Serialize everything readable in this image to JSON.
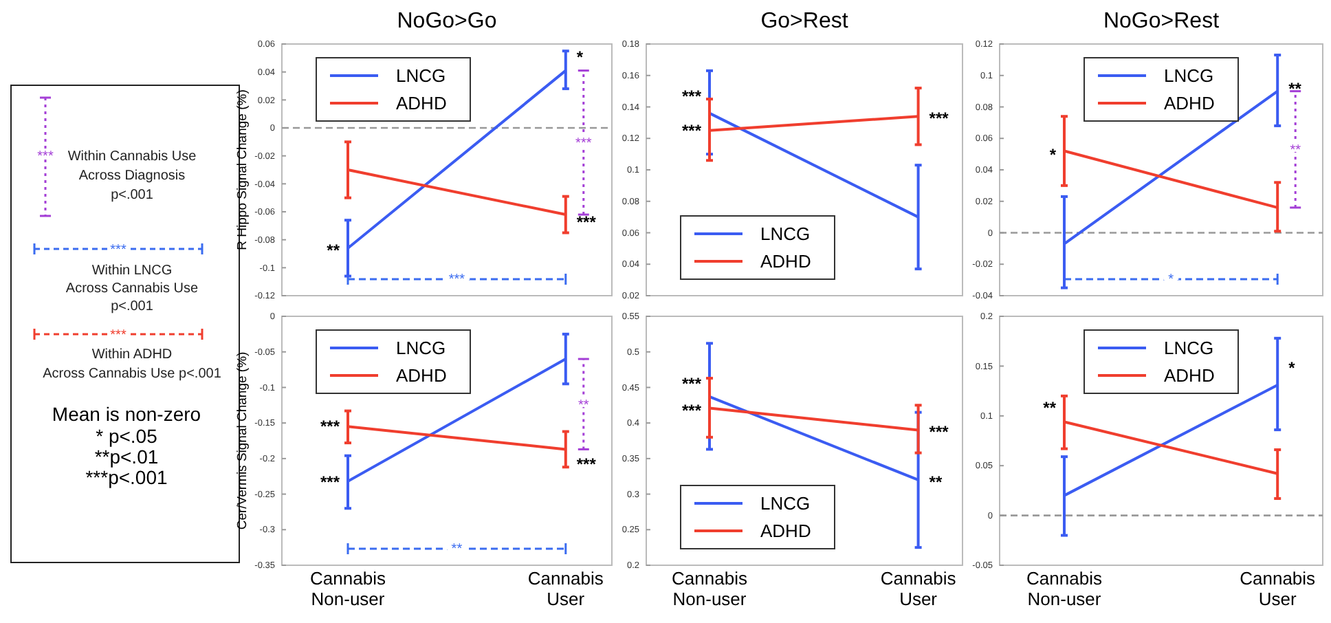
{
  "chart_data": [
    {
      "type": "other",
      "annotations": [
        "***",
        "Within Cannabis Use",
        "Across Diagnosis",
        "p<.001",
        "***",
        "Within LNCG",
        "Across Cannabis Use",
        "p<.001",
        "***",
        "Within ADHD",
        "Across Cannabis Use p<.001",
        "Mean is non-zero",
        "* p<.05",
        "**p<.01",
        "***p<.001"
      ]
    },
    {
      "type": "line",
      "title": "NoGo>Go",
      "ylabel": "R Hippo Signal Change (%)",
      "categories": [
        "Cannabis Non-user",
        "Cannabis User"
      ],
      "tick_labels": "y",
      "legend": "top left",
      "ylim": [
        -0.12,
        0.06
      ],
      "yticks": [
        -0.12,
        -0.1,
        -0.08,
        -0.06,
        -0.04,
        -0.02,
        0,
        0.02,
        0.04,
        0.06
      ],
      "series": [
        {
          "name": "LNCG",
          "color": "#3b5cf2",
          "values": [
            -0.086,
            0.041
          ],
          "errors": [
            [
              -0.106,
              -0.066
            ],
            [
              0.028,
              0.055
            ]
          ]
        },
        {
          "name": "ADHD",
          "color": "#f03e2e",
          "values": [
            -0.03,
            -0.062
          ],
          "errors": [
            [
              -0.05,
              -0.01
            ],
            [
              -0.075,
              -0.049
            ]
          ]
        }
      ],
      "ref_lines": [
        {
          "axis": "y",
          "value": 0,
          "color": "#999999",
          "line_style": "dashed"
        }
      ],
      "annotations": [
        "***",
        "***",
        {
          "text": "**",
          "x": "Cannabis Non-user",
          "y": -0.086
        },
        {
          "text": "*",
          "x": "Cannabis User",
          "y": 0.052
        },
        {
          "text": "***",
          "x": "Cannabis User",
          "y": -0.066
        }
      ]
    },
    {
      "type": "line",
      "title": "Go>Rest",
      "categories": [
        "Cannabis Non-user",
        "Cannabis User"
      ],
      "tick_labels": "y",
      "legend": "bottom left",
      "ylim": [
        0.02,
        0.18
      ],
      "yticks": [
        0.02,
        0.04,
        0.06,
        0.08,
        0.1,
        0.12,
        0.14,
        0.16,
        0.18
      ],
      "series": [
        {
          "name": "LNCG",
          "color": "#3b5cf2",
          "values": [
            0.136,
            0.07
          ],
          "errors": [
            [
              0.11,
              0.163
            ],
            [
              0.037,
              0.103
            ]
          ]
        },
        {
          "name": "ADHD",
          "color": "#f03e2e",
          "values": [
            0.125,
            0.134
          ],
          "errors": [
            [
              0.106,
              0.145
            ],
            [
              0.116,
              0.152
            ]
          ]
        }
      ],
      "annotations": [
        {
          "text": "***",
          "x": "Cannabis Non-user",
          "y": 0.148
        },
        {
          "text": "***",
          "x": "Cannabis Non-user",
          "y": 0.126
        },
        {
          "text": "***",
          "x": "Cannabis User",
          "y": 0.134
        }
      ]
    },
    {
      "type": "line",
      "title": "NoGo>Rest",
      "categories": [
        "Cannabis Non-user",
        "Cannabis User"
      ],
      "tick_labels": "y",
      "legend": "top",
      "ylim": [
        -0.04,
        0.12
      ],
      "yticks": [
        -0.04,
        -0.02,
        0,
        0.02,
        0.04,
        0.06,
        0.08,
        0.1,
        0.12
      ],
      "series": [
        {
          "name": "LNCG",
          "color": "#3b5cf2",
          "values": [
            -0.007,
            0.09
          ],
          "errors": [
            [
              -0.035,
              0.023
            ],
            [
              0.068,
              0.113
            ]
          ]
        },
        {
          "name": "ADHD",
          "color": "#f03e2e",
          "values": [
            0.052,
            0.016
          ],
          "errors": [
            [
              0.03,
              0.074
            ],
            [
              0.001,
              0.032
            ]
          ]
        }
      ],
      "ref_lines": [
        {
          "axis": "y",
          "value": 0,
          "color": "#999999",
          "line_style": "dashed"
        }
      ],
      "annotations": [
        "**",
        "*",
        {
          "text": "*",
          "x": "Cannabis Non-user",
          "y": 0.051
        },
        {
          "text": "**",
          "x": "Cannabis User",
          "y": 0.093
        }
      ]
    },
    {
      "type": "line",
      "ylabel": "Cer/Vermis Signal Change (%)",
      "categories": [
        "Cannabis Non-user",
        "Cannabis User"
      ],
      "legend": "top left",
      "ylim": [
        -0.35,
        0
      ],
      "yticks": [
        -0.35,
        -0.3,
        -0.25,
        -0.2,
        -0.15,
        -0.1,
        -0.05,
        0
      ],
      "series": [
        {
          "name": "LNCG",
          "color": "#3b5cf2",
          "values": [
            -0.232,
            -0.06
          ],
          "errors": [
            [
              -0.27,
              -0.196
            ],
            [
              -0.095,
              -0.025
            ]
          ]
        },
        {
          "name": "ADHD",
          "color": "#f03e2e",
          "values": [
            -0.155,
            -0.187
          ],
          "errors": [
            [
              -0.178,
              -0.133
            ],
            [
              -0.212,
              -0.162
            ]
          ]
        }
      ],
      "annotations": [
        "**",
        "**",
        {
          "text": "***",
          "x": "Cannabis Non-user",
          "y": -0.152
        },
        {
          "text": "***",
          "x": "Cannabis Non-user",
          "y": -0.23
        },
        {
          "text": "***",
          "x": "Cannabis User",
          "y": -0.205
        }
      ]
    },
    {
      "type": "line",
      "categories": [
        "Cannabis Non-user",
        "Cannabis User"
      ],
      "legend": "bottom left",
      "ylim": [
        0.2,
        0.55
      ],
      "yticks": [
        0.2,
        0.25,
        0.3,
        0.35,
        0.4,
        0.45,
        0.5,
        0.55
      ],
      "series": [
        {
          "name": "LNCG",
          "color": "#3b5cf2",
          "values": [
            0.437,
            0.32
          ],
          "errors": [
            [
              0.363,
              0.512
            ],
            [
              0.225,
              0.415
            ]
          ]
        },
        {
          "name": "ADHD",
          "color": "#f03e2e",
          "values": [
            0.421,
            0.39
          ],
          "errors": [
            [
              0.38,
              0.463
            ],
            [
              0.358,
              0.425
            ]
          ]
        }
      ],
      "annotations": [
        {
          "text": "***",
          "x": "Cannabis Non-user",
          "y": 0.458
        },
        {
          "text": "***",
          "x": "Cannabis Non-user",
          "y": 0.42
        },
        {
          "text": "***",
          "x": "Cannabis User",
          "y": 0.39
        },
        {
          "text": "**",
          "x": "Cannabis User",
          "y": 0.32
        }
      ]
    },
    {
      "type": "line",
      "categories": [
        "Cannabis Non-user",
        "Cannabis User"
      ],
      "legend": "top",
      "ylim": [
        -0.05,
        0.2
      ],
      "yticks": [
        -0.05,
        0,
        0.05,
        0.1,
        0.15,
        0.2
      ],
      "series": [
        {
          "name": "LNCG",
          "color": "#3b5cf2",
          "values": [
            0.02,
            0.131
          ],
          "errors": [
            [
              -0.02,
              0.059
            ],
            [
              0.086,
              0.178
            ]
          ]
        },
        {
          "name": "ADHD",
          "color": "#f03e2e",
          "values": [
            0.094,
            0.042
          ],
          "errors": [
            [
              0.067,
              0.12
            ],
            [
              0.017,
              0.066
            ]
          ]
        }
      ],
      "ref_lines": [
        {
          "axis": "y",
          "value": 0,
          "color": "#999999",
          "line_style": "dashed"
        }
      ],
      "annotations": [
        {
          "text": "**",
          "x": "Cannabis Non-user",
          "y": 0.11
        },
        {
          "text": "*",
          "x": "Cannabis User",
          "y": 0.15
        }
      ]
    }
  ]
}
